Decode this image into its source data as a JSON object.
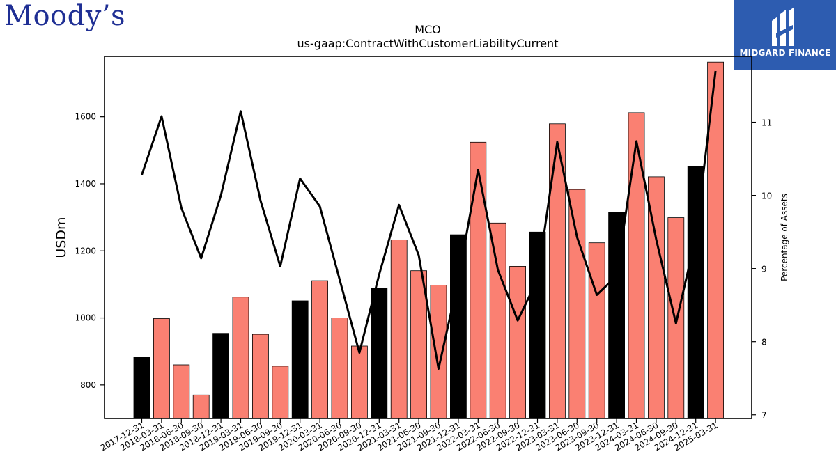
{
  "logos": {
    "left_logo": "Moody’s",
    "right_logo_name": "MIDGARD FINANCE",
    "right_logo_bg": "#2d5cb0"
  },
  "chart_data": {
    "type": "bar",
    "title": "MCO",
    "subtitle": "us-gaap:ContractWithCustomerLiabilityCurrent",
    "ylabel": "USDm",
    "y2label": "Percentage of Assets",
    "ylim": [
      700,
      1780
    ],
    "y2lim": [
      6.95,
      11.9
    ],
    "yticks": [
      800,
      1000,
      1200,
      1400,
      1600
    ],
    "y2ticks": [
      7,
      8,
      9,
      10,
      11
    ],
    "grid": false,
    "colors": {
      "q4": "#000000",
      "other": "#fa8072",
      "line": "#000000"
    },
    "categories": [
      "2017-12-31",
      "2018-03-31",
      "2018-06-30",
      "2018-09-30",
      "2018-12-31",
      "2019-03-31",
      "2019-06-30",
      "2019-09-30",
      "2019-12-31",
      "2020-03-31",
      "2020-06-30",
      "2020-09-30",
      "2020-12-31",
      "2021-03-31",
      "2021-06-30",
      "2021-09-30",
      "2021-12-31",
      "2022-03-31",
      "2022-06-30",
      "2022-09-30",
      "2022-12-31",
      "2023-03-31",
      "2023-06-30",
      "2023-09-30",
      "2023-12-31",
      "2024-03-31",
      "2024-06-30",
      "2024-09-30",
      "2024-12-31",
      "2025-03-31"
    ],
    "series": [
      {
        "name": "",
        "kind": "bar",
        "axis": "left",
        "values": [
          883,
          998,
          860,
          770,
          954,
          1062,
          951,
          856,
          1051,
          1111,
          1000,
          916,
          1089,
          1233,
          1141,
          1098,
          1248,
          1524,
          1283,
          1154,
          1256,
          1579,
          1383,
          1224,
          1315,
          1612,
          1421,
          1299,
          1453,
          1763
        ]
      },
      {
        "name": "",
        "kind": "line",
        "axis": "right",
        "values": [
          10.28,
          11.08,
          9.83,
          9.14,
          10.0,
          11.15,
          9.93,
          9.03,
          10.23,
          9.85,
          8.85,
          7.85,
          8.92,
          9.87,
          9.18,
          7.63,
          8.85,
          10.35,
          8.98,
          8.29,
          8.85,
          10.73,
          9.43,
          8.64,
          8.9,
          10.74,
          9.4,
          8.25,
          9.43,
          11.7
        ]
      }
    ]
  }
}
